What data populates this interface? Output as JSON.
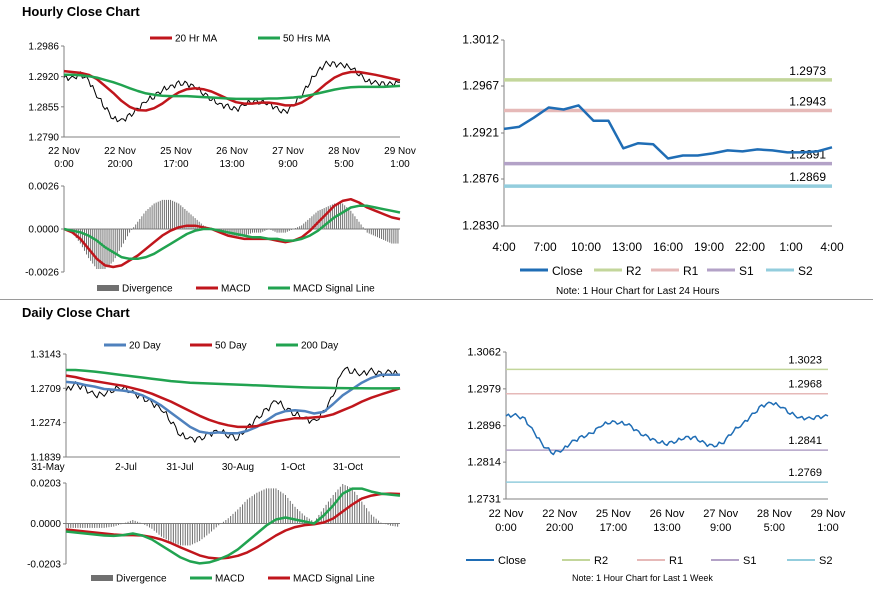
{
  "hourly_title": "Hourly Close Chart",
  "daily_title": "Daily Close Chart",
  "colors": {
    "red": "#c0161c",
    "green": "#21a350",
    "blue": "#1f6db5",
    "steelblue": "#4f81bd",
    "gray": "#707070",
    "r2": "#c3d69b",
    "r1": "#e6b9b8",
    "s1": "#b3a2c7",
    "s2": "#93cddd"
  },
  "chart_data": [
    {
      "id": "hourly_price",
      "type": "line",
      "title": "Hourly Close Chart",
      "yticks": [
        "1.2986",
        "1.2920",
        "1.2855",
        "1.2790"
      ],
      "ylim": [
        1.279,
        1.2986
      ],
      "xticks": [
        [
          "22 Nov",
          "0:00"
        ],
        [
          "22 Nov",
          "20:00"
        ],
        [
          "25 Nov",
          "17:00"
        ],
        [
          "26 Nov",
          "13:00"
        ],
        [
          "27 Nov",
          "9:00"
        ],
        [
          "28 Nov",
          "5:00"
        ],
        [
          "29 Nov",
          "1:00"
        ]
      ],
      "legend": [
        "20 Hr MA",
        "50 Hrs MA"
      ],
      "series": [
        {
          "name": "Close",
          "values": [
            1.2918,
            1.2916,
            1.2925,
            1.2912,
            1.288,
            1.2855,
            1.283,
            1.2825,
            1.2835,
            1.285,
            1.2868,
            1.2878,
            1.2892,
            1.2898,
            1.2905,
            1.2904,
            1.2898,
            1.2885,
            1.2872,
            1.286,
            1.2855,
            1.2848,
            1.286,
            1.2868,
            1.2866,
            1.2862,
            1.285,
            1.2842,
            1.286,
            1.288,
            1.291,
            1.2932,
            1.2948,
            1.2946,
            1.2945,
            1.294,
            1.2927,
            1.291,
            1.2907,
            1.2903,
            1.2904,
            1.2908
          ]
        },
        {
          "name": "20 Hr MA",
          "values": [
            1.2932,
            1.293,
            1.2928,
            1.2924,
            1.2915,
            1.29,
            1.2885,
            1.2868,
            1.2855,
            1.2848,
            1.2847,
            1.2852,
            1.2862,
            1.2875,
            1.2886,
            1.2893,
            1.2895,
            1.2893,
            1.2888,
            1.288,
            1.2872,
            1.2865,
            1.2862,
            1.2862,
            1.2864,
            1.2864,
            1.2862,
            1.2858,
            1.2858,
            1.2864,
            1.2875,
            1.289,
            1.2905,
            1.2918,
            1.2926,
            1.293,
            1.293,
            1.2927,
            1.2924,
            1.292,
            1.2916,
            1.2912
          ]
        },
        {
          "name": "50 Hrs MA",
          "values": [
            1.2924,
            1.2924,
            1.2923,
            1.2921,
            1.2918,
            1.2913,
            1.2908,
            1.2902,
            1.2895,
            1.2889,
            1.2884,
            1.2881,
            1.2879,
            1.2878,
            1.2878,
            1.2878,
            1.2877,
            1.2876,
            1.2875,
            1.2874,
            1.2873,
            1.2872,
            1.2872,
            1.2872,
            1.2872,
            1.2873,
            1.2873,
            1.2874,
            1.2875,
            1.2877,
            1.288,
            1.2884,
            1.2888,
            1.2892,
            1.2895,
            1.2897,
            1.2898,
            1.2898,
            1.2898,
            1.2898,
            1.2899,
            1.29
          ]
        }
      ]
    },
    {
      "id": "hourly_macd",
      "type": "line",
      "yticks": [
        "0.0026",
        "0.0000",
        "-0.0026"
      ],
      "ylim": [
        -0.0026,
        0.0026
      ],
      "legend": [
        "Divergence",
        "MACD",
        "MACD Signal Line"
      ],
      "series": [
        {
          "name": "MACD",
          "values": [
            0.0,
            -0.0002,
            -0.0006,
            -0.0012,
            -0.0018,
            -0.0022,
            -0.0023,
            -0.0022,
            -0.0019,
            -0.0016,
            -0.0012,
            -0.0008,
            -0.0004,
            -0.0001,
            0.0001,
            0.0002,
            0.0002,
            0.0001,
            0.0,
            -0.0002,
            -0.0004,
            -0.0005,
            -0.0006,
            -0.0006,
            -0.0006,
            -0.0006,
            -0.0007,
            -0.0008,
            -0.0007,
            -0.0005,
            -0.0001,
            0.0004,
            0.0009,
            0.0014,
            0.0017,
            0.0018,
            0.0016,
            0.0013,
            0.0011,
            0.0009,
            0.0007,
            0.0006
          ]
        },
        {
          "name": "MACD Signal Line",
          "values": [
            0.0,
            -0.0001,
            -0.0002,
            -0.0004,
            -0.0007,
            -0.0011,
            -0.0014,
            -0.0017,
            -0.0018,
            -0.0018,
            -0.0017,
            -0.0015,
            -0.0012,
            -0.0009,
            -0.0006,
            -0.0003,
            -0.0001,
            0.0,
            0.0,
            -0.0001,
            -0.0002,
            -0.0003,
            -0.0004,
            -0.0005,
            -0.0005,
            -0.0006,
            -0.0006,
            -0.0007,
            -0.0007,
            -0.0006,
            -0.0004,
            -0.0001,
            0.0003,
            0.0007,
            0.001,
            0.0013,
            0.0014,
            0.0014,
            0.0013,
            0.0012,
            0.0011,
            0.001
          ]
        }
      ]
    },
    {
      "id": "hourly_pivot",
      "type": "line",
      "yticks": [
        "1.3012",
        "1.2967",
        "1.2921",
        "1.2876",
        "1.2830"
      ],
      "ylim": [
        1.283,
        1.3012
      ],
      "xticks": [
        "4:00",
        "7:00",
        "10:00",
        "13:00",
        "16:00",
        "19:00",
        "22:00",
        "1:00",
        "4:00"
      ],
      "levels": [
        {
          "name": "R2",
          "value": 1.2973
        },
        {
          "name": "R1",
          "value": 1.2943
        },
        {
          "name": "S1",
          "value": 1.2891
        },
        {
          "name": "S2",
          "value": 1.2869
        }
      ],
      "level_labels": [
        "1.2973",
        "1.2943",
        "1.2891",
        "1.2869"
      ],
      "legend": [
        "Close",
        "R2",
        "R1",
        "S1",
        "S2"
      ],
      "note": "Note: 1 Hour Chart for Last 24 Hours",
      "series": [
        {
          "name": "Close",
          "values": [
            1.2925,
            1.2927,
            1.2936,
            1.2946,
            1.2944,
            1.2948,
            1.2933,
            1.2933,
            1.2906,
            1.2911,
            1.291,
            1.2896,
            1.2899,
            1.2899,
            1.2901,
            1.2904,
            1.2903,
            1.2905,
            1.2904,
            1.2902,
            1.2902,
            1.2903,
            1.2907
          ]
        }
      ]
    },
    {
      "id": "daily_price",
      "type": "line",
      "title": "Daily Close Chart",
      "yticks": [
        "1.3143",
        "1.2709",
        "1.2274",
        "1.1839"
      ],
      "ylim": [
        1.1839,
        1.3143
      ],
      "xticks": [
        "31-May",
        "2-Jul",
        "31-Jul",
        "30-Aug",
        "1-Oct",
        "31-Oct"
      ],
      "legend": [
        "20 Day",
        "50 Day",
        "200 Day"
      ],
      "series": [
        {
          "name": "Close",
          "values": [
            1.268,
            1.276,
            1.27,
            1.262,
            1.264,
            1.27,
            1.272,
            1.265,
            1.259,
            1.252,
            1.245,
            1.23,
            1.212,
            1.207,
            1.206,
            1.213,
            1.217,
            1.212,
            1.208,
            1.221,
            1.232,
            1.243,
            1.256,
            1.246,
            1.239,
            1.233,
            1.228,
            1.24,
            1.262,
            1.296,
            1.293,
            1.289,
            1.293,
            1.288,
            1.292,
            1.288
          ]
        },
        {
          "name": "20 Day",
          "values": [
            1.279,
            1.278,
            1.275,
            1.273,
            1.27,
            1.269,
            1.268,
            1.266,
            1.262,
            1.256,
            1.249,
            1.24,
            1.231,
            1.222,
            1.216,
            1.214,
            1.215,
            1.214,
            1.214,
            1.217,
            1.222,
            1.23,
            1.238,
            1.242,
            1.243,
            1.242,
            1.239,
            1.241,
            1.251,
            1.262,
            1.27,
            1.278,
            1.284,
            1.288,
            1.288,
            1.288
          ]
        },
        {
          "name": "50 Day",
          "values": [
            1.287,
            1.285,
            1.282,
            1.28,
            1.278,
            1.276,
            1.274,
            1.271,
            1.268,
            1.264,
            1.259,
            1.254,
            1.248,
            1.242,
            1.236,
            1.231,
            1.227,
            1.224,
            1.222,
            1.222,
            1.223,
            1.226,
            1.229,
            1.231,
            1.233,
            1.233,
            1.234,
            1.235,
            1.238,
            1.243,
            1.248,
            1.254,
            1.259,
            1.263,
            1.267,
            1.2709
          ]
        },
        {
          "name": "200 Day",
          "values": [
            1.294,
            1.294,
            1.293,
            1.292,
            1.2905,
            1.289,
            1.2875,
            1.286,
            1.2845,
            1.283,
            1.2815,
            1.28,
            1.279,
            1.278,
            1.2775,
            1.277,
            1.2765,
            1.276,
            1.2755,
            1.275,
            1.2745,
            1.274,
            1.2735,
            1.273,
            1.2725,
            1.272,
            1.2718,
            1.2715,
            1.2713,
            1.2711,
            1.271,
            1.2709,
            1.2708,
            1.2708,
            1.2708,
            1.2709
          ]
        }
      ]
    },
    {
      "id": "daily_macd",
      "type": "line",
      "yticks": [
        "0.0203",
        "0.0000",
        "-0.0203"
      ],
      "ylim": [
        -0.0203,
        0.0203
      ],
      "legend": [
        "Divergence",
        "MACD",
        "MACD Signal Line"
      ],
      "series": [
        {
          "name": "MACD",
          "values": [
            -0.004,
            -0.0045,
            -0.005,
            -0.0055,
            -0.006,
            -0.0062,
            -0.0058,
            -0.005,
            -0.006,
            -0.008,
            -0.011,
            -0.014,
            -0.017,
            -0.019,
            -0.02,
            -0.0195,
            -0.018,
            -0.016,
            -0.013,
            -0.009,
            -0.005,
            -0.001,
            0.002,
            0.003,
            0.002,
            0.001,
            0.0,
            0.004,
            0.009,
            0.015,
            0.0175,
            0.0175,
            0.016,
            0.015,
            0.0145,
            0.014
          ]
        },
        {
          "name": "MACD Signal Line",
          "values": [
            -0.003,
            -0.0035,
            -0.004,
            -0.0045,
            -0.005,
            -0.0055,
            -0.0058,
            -0.0058,
            -0.006,
            -0.0068,
            -0.008,
            -0.0098,
            -0.012,
            -0.014,
            -0.016,
            -0.0172,
            -0.0176,
            -0.0172,
            -0.0162,
            -0.0145,
            -0.012,
            -0.009,
            -0.006,
            -0.0035,
            -0.0018,
            -0.0008,
            -0.0004,
            0.0005,
            0.0025,
            0.006,
            0.0095,
            0.0125,
            0.014,
            0.0148,
            0.015,
            0.0148
          ]
        }
      ]
    },
    {
      "id": "daily_pivot",
      "type": "line",
      "yticks": [
        "1.3062",
        "1.2979",
        "1.2896",
        "1.2814",
        "1.2731"
      ],
      "ylim": [
        1.2731,
        1.3062
      ],
      "xticks": [
        [
          "22 Nov",
          "0:00"
        ],
        [
          "22 Nov",
          "20:00"
        ],
        [
          "25 Nov",
          "17:00"
        ],
        [
          "26 Nov",
          "13:00"
        ],
        [
          "27 Nov",
          "9:00"
        ],
        [
          "28 Nov",
          "5:00"
        ],
        [
          "29 Nov",
          "1:00"
        ]
      ],
      "levels": [
        {
          "name": "R2",
          "value": 1.3023
        },
        {
          "name": "R1",
          "value": 1.2968
        },
        {
          "name": "S1",
          "value": 1.2841
        },
        {
          "name": "S2",
          "value": 1.2769
        }
      ],
      "level_labels": [
        "1.3023",
        "1.2968",
        "1.2841",
        "1.2769"
      ],
      "legend": [
        "Close",
        "R2",
        "R1",
        "S1",
        "S2"
      ],
      "note": "Note: 1 Hour Chart for Last 1 Week",
      "series": [
        {
          "name": "Close",
          "values": [
            1.2918,
            1.292,
            1.291,
            1.288,
            1.285,
            1.2835,
            1.2842,
            1.286,
            1.287,
            1.2878,
            1.2896,
            1.2905,
            1.2903,
            1.2898,
            1.288,
            1.287,
            1.286,
            1.2856,
            1.2862,
            1.287,
            1.2868,
            1.2855,
            1.285,
            1.286,
            1.2885,
            1.29,
            1.292,
            1.294,
            1.2948,
            1.294,
            1.2925,
            1.2914,
            1.2912,
            1.2915,
            1.2918
          ]
        }
      ]
    }
  ]
}
